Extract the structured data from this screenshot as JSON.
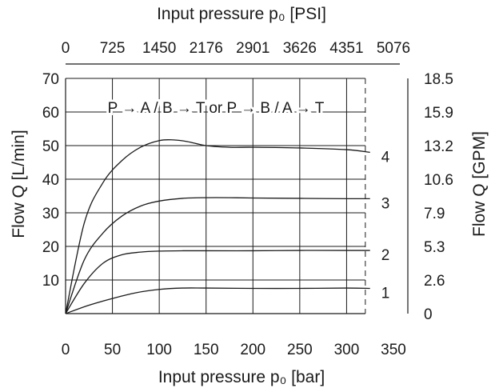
{
  "chart_data": {
    "type": "line",
    "top_axis_title": "Input pressure p₀ [PSI]",
    "top_ticks": [
      "0",
      "725",
      "1450",
      "2176",
      "2901",
      "3626",
      "4351",
      "5076"
    ],
    "bottom_axis_title": "Input pressure p₀ [bar]",
    "x_ticks": [
      0,
      50,
      100,
      150,
      200,
      250,
      300,
      350
    ],
    "xlim": [
      0,
      350
    ],
    "left_axis_title": "Flow Q [L/min]",
    "y_ticks": [
      10,
      20,
      30,
      40,
      50,
      60,
      70
    ],
    "ylim": [
      0,
      70
    ],
    "right_axis_title": "Flow Q [GPM]",
    "right_ticks": [
      "18.5",
      "15.9",
      "13.2",
      "10.6",
      "7.9",
      "5.3",
      "2.6",
      "0"
    ],
    "annotation": "P → A / B → T or P → B / A → T",
    "dashed_limit_x": 320,
    "grid": true,
    "series": [
      {
        "name": "1",
        "x": [
          0,
          25,
          50,
          75,
          100,
          125,
          150,
          200,
          250,
          300,
          325
        ],
        "y": [
          0,
          2.5,
          4.5,
          6.2,
          7.2,
          7.6,
          7.6,
          7.5,
          7.5,
          7.6,
          7.5
        ]
      },
      {
        "name": "2",
        "x": [
          0,
          20,
          40,
          60,
          80,
          100,
          125,
          150,
          200,
          250,
          300,
          325
        ],
        "y": [
          0,
          9,
          15,
          17.5,
          18.3,
          18.6,
          18.7,
          18.7,
          18.7,
          18.8,
          18.8,
          18.8
        ]
      },
      {
        "name": "3",
        "x": [
          0,
          20,
          40,
          60,
          80,
          100,
          125,
          150,
          175,
          200,
          250,
          300,
          325
        ],
        "y": [
          0,
          16,
          24,
          29,
          32,
          33.5,
          34.3,
          34.5,
          34.5,
          34.4,
          34.3,
          34.2,
          34.2
        ]
      },
      {
        "name": "4",
        "x": [
          0,
          20,
          40,
          60,
          80,
          100,
          115,
          130,
          150,
          175,
          200,
          250,
          300,
          325
        ],
        "y": [
          0,
          27,
          39,
          45.5,
          49.5,
          51.5,
          51.7,
          51.2,
          50.0,
          49.5,
          49.5,
          49.3,
          48.8,
          48.0
        ]
      }
    ]
  }
}
